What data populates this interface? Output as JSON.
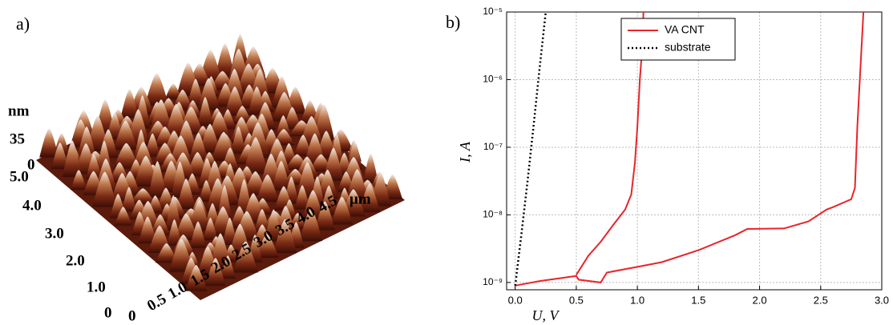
{
  "panel_a": {
    "label": "a)",
    "z_unit": "nm",
    "z_ticks": [
      "35",
      "0"
    ],
    "y_ticks": [
      "5.0",
      "4.0",
      "3.0",
      "2.0",
      "1.0",
      "0"
    ],
    "x_ticks": [
      "0",
      "0.5",
      "1.0",
      "1.5",
      "2.0",
      "2.5",
      "3.0",
      "3.5",
      "4.0",
      "4.5"
    ],
    "xy_unit": "μm"
  },
  "chart_data": {
    "type": "line",
    "panel_label": "b)",
    "xlabel": "U, V",
    "ylabel": "I, A",
    "xlim": [
      -0.07,
      3.0
    ],
    "xticks": [
      {
        "value": 0,
        "label": "0.0"
      },
      0.5,
      {
        "value": 1,
        "label": "1.0"
      },
      1.5,
      {
        "value": 2,
        "label": "2.0"
      },
      2.5,
      {
        "value": 3,
        "label": "3.0"
      }
    ],
    "ylim": [
      7.8e-10,
      1e-05
    ],
    "log_y": true,
    "yticks": [
      {
        "value": 1e-09,
        "label": "10⁻⁹"
      },
      {
        "value": 1e-08,
        "label": "10⁻⁸"
      },
      {
        "value": 1e-07,
        "label": "10⁻⁷"
      },
      {
        "value": 1e-06,
        "label": "10⁻⁶"
      },
      {
        "value": 1e-05,
        "label": "10⁻⁵"
      }
    ],
    "grid": true,
    "legend": "upper center",
    "series": [
      {
        "name": "VA CNT",
        "color": "#e8242a",
        "dash": "solid",
        "x": [
          0,
          0.2,
          0.5,
          0.52,
          0.7,
          0.75,
          1.0,
          1.2,
          1.5,
          1.8,
          1.9,
          2.2,
          2.4,
          2.55,
          2.6,
          2.75,
          2.78,
          2.8,
          2.82,
          2.85,
          null,
          1.05,
          1.04,
          1.02,
          1.0,
          0.98,
          0.95,
          0.9,
          0.8,
          0.7,
          0.6,
          0.5
        ],
        "values": [
          9e-10,
          1.05e-09,
          1.25e-09,
          1.1e-09,
          1e-09,
          1.4e-09,
          1.7e-09,
          2e-09,
          3e-09,
          5e-09,
          6.2e-09,
          6.3e-09,
          8e-09,
          1.2e-08,
          1.3e-08,
          1.7e-08,
          2.5e-08,
          2e-07,
          1e-06,
          1e-05,
          null,
          1e-05,
          3e-06,
          1e-06,
          2e-07,
          6e-08,
          2e-08,
          1.2e-08,
          7e-09,
          4e-09,
          2.5e-09,
          1.3e-09
        ]
      },
      {
        "name": "substrate",
        "color": "#000000",
        "dash": "dotted",
        "x": [
          0,
          0.05,
          0.1,
          0.15,
          0.2,
          0.25
        ],
        "values": [
          9e-10,
          5e-09,
          3e-08,
          2e-07,
          1.5e-06,
          1e-05
        ]
      }
    ]
  }
}
